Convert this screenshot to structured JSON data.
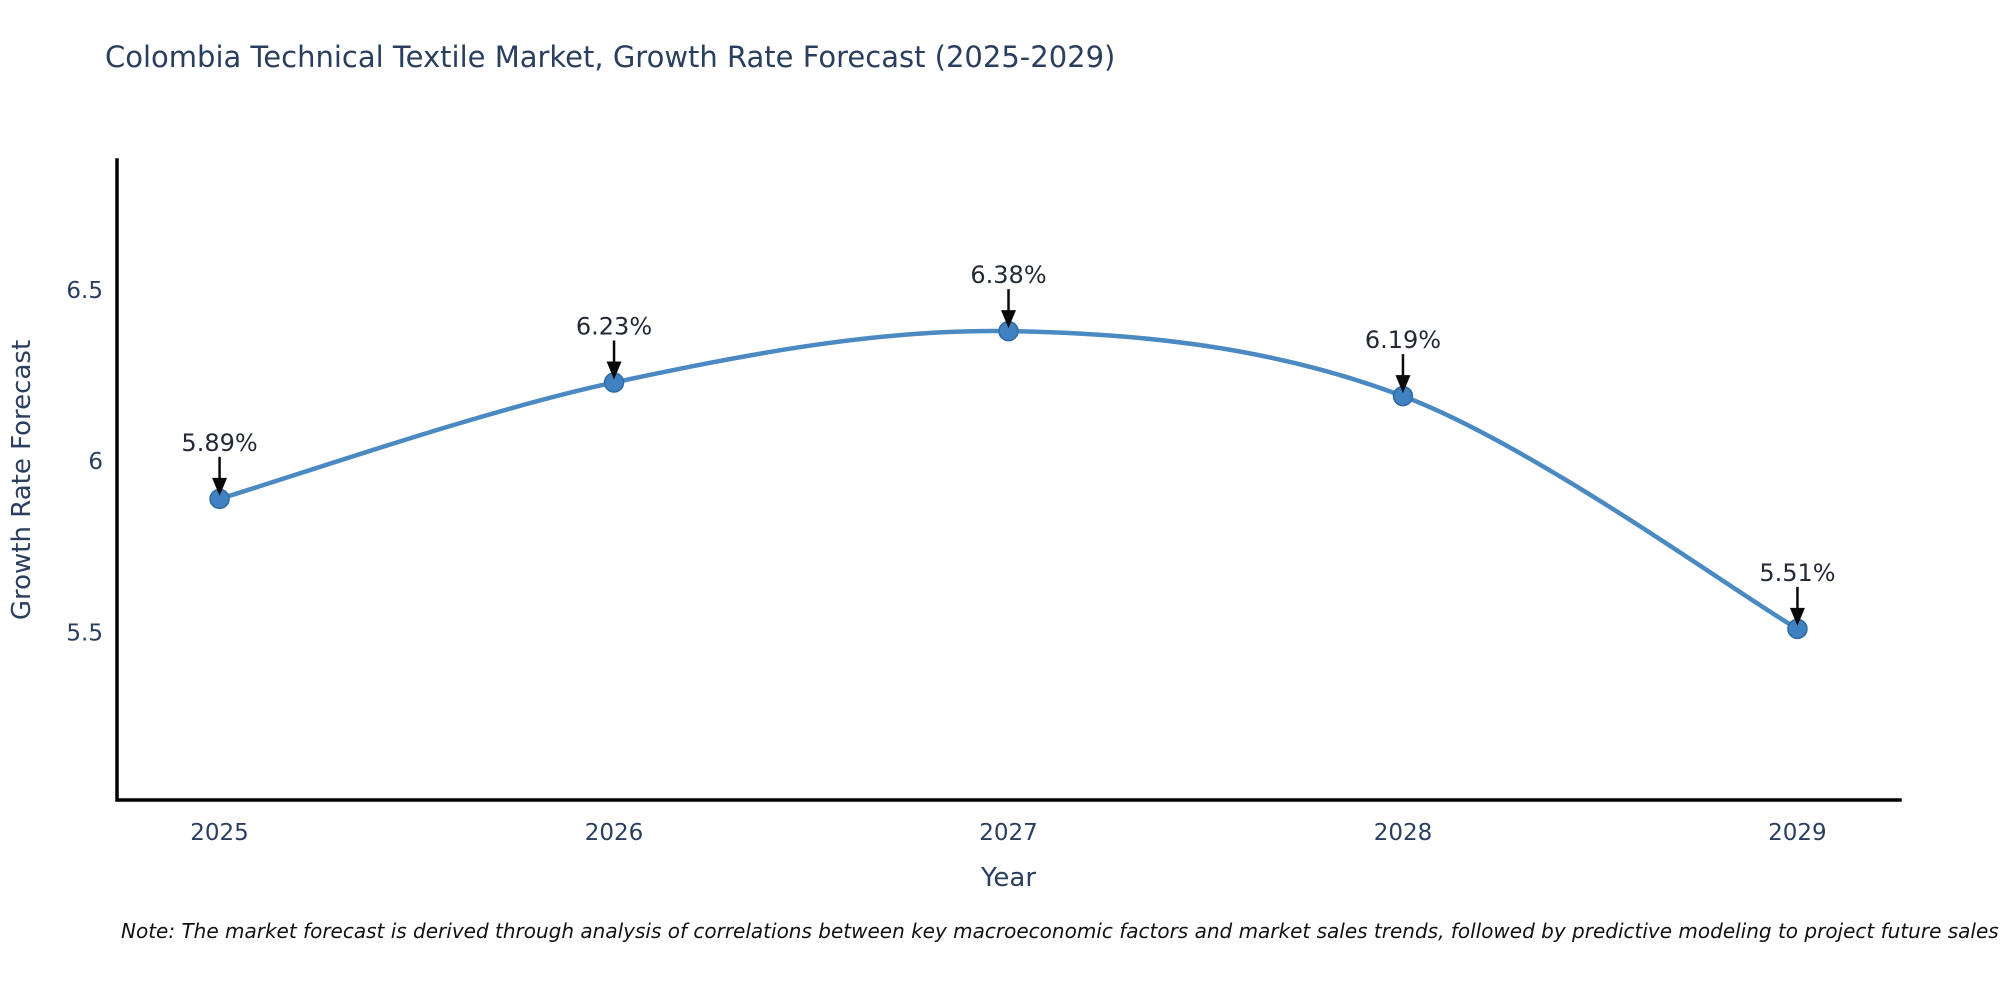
{
  "header": {
    "title": "Colombia Technical Textile Market, Growth Rate Forecast (2025-2029)"
  },
  "note": {
    "text": "Note: The market forecast is derived through analysis of correlations between key macroeconomic factors and market sales trends, followed by predictive modeling to project future sales"
  },
  "chart_data": {
    "type": "line",
    "line_shape": "spline",
    "title": "Colombia Technical Textile Market, Growth Rate Forecast (2025-2029)",
    "xlabel": "Year",
    "ylabel": "Growth Rate Forecast",
    "x": [
      2025,
      2026,
      2027,
      2028,
      2029
    ],
    "categories": [
      "2025",
      "2026",
      "2027",
      "2028",
      "2029"
    ],
    "series": [
      {
        "name": "Growth Rate Forecast",
        "values": [
          5.89,
          6.23,
          6.38,
          6.19,
          5.51
        ]
      }
    ],
    "point_labels": [
      "5.89%",
      "6.23%",
      "6.38%",
      "6.19%",
      "5.51%"
    ],
    "yticks": [
      5.5,
      6,
      6.5
    ],
    "ytick_labels": [
      "5.5",
      "6",
      "6.5"
    ],
    "ylim": [
      5.01,
      6.88
    ],
    "xlim": [
      2024.74,
      2029.26
    ],
    "grid": false,
    "legend_position": "none",
    "annotation_style": "label-with-down-arrow",
    "colors": {
      "line": "#4a89c1",
      "marker": "#3f81c1",
      "marker_stroke": "#2e6ca4",
      "axis": "#000000",
      "tick_text": "#2a3f5f",
      "axis_title_text": "#2a3f5f",
      "annotation_text": "#222a35",
      "arrow": "#0a0a0a"
    }
  }
}
